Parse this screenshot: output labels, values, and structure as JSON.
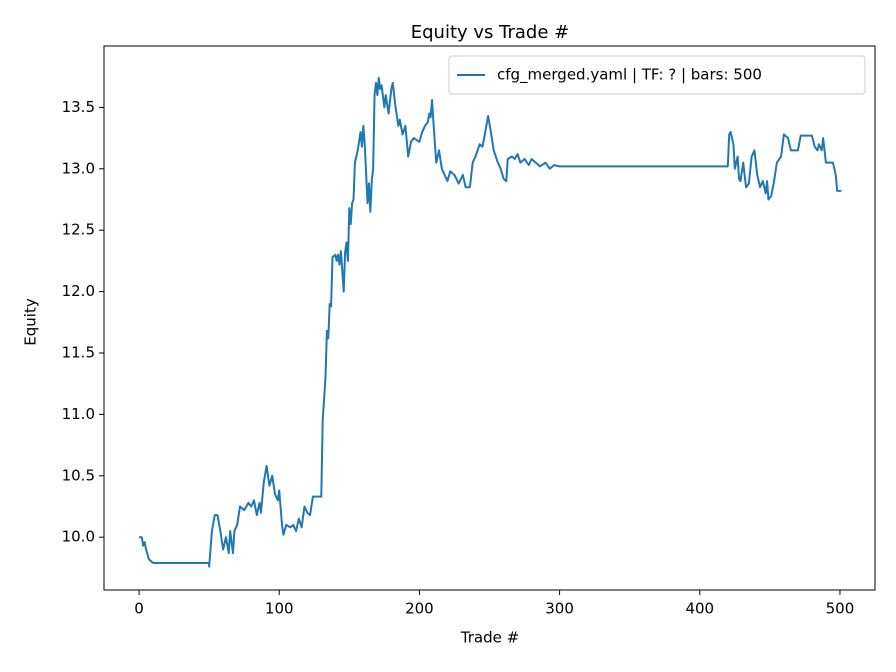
{
  "chart_data": {
    "type": "line",
    "title": "Equity vs Trade #",
    "x_label": "Trade #",
    "y_label": "Equity",
    "xlim": [
      -25,
      525
    ],
    "ylim": [
      9.57,
      14.0
    ],
    "xticks": [
      0,
      100,
      200,
      300,
      400,
      500
    ],
    "yticks": [
      {
        "value": 10,
        "label": "10.0"
      },
      10.5,
      {
        "value": 11,
        "label": "11.0"
      },
      11.5,
      {
        "value": 12,
        "label": "12.0"
      },
      12.5,
      {
        "value": 13,
        "label": "13.0"
      },
      13.5
    ],
    "legend": "upper right",
    "series": [
      {
        "name": "cfg_merged.yaml | TF: ? | bars: 500",
        "color": "#1f77b4",
        "x": [
          0,
          2,
          3,
          4,
          5,
          7,
          10,
          50,
          50,
          52,
          54,
          56,
          58,
          60,
          62,
          64,
          65,
          67,
          68,
          70,
          72,
          75,
          78,
          80,
          82,
          84,
          86,
          87,
          89,
          91,
          93,
          95,
          97,
          99,
          100,
          102,
          103,
          105,
          108,
          110,
          112,
          114,
          116,
          118,
          120,
          122,
          124,
          130,
          131,
          133,
          134,
          135,
          136,
          137,
          138,
          140,
          141,
          142,
          143,
          144,
          146,
          147,
          148,
          149,
          150,
          151,
          152,
          153,
          154,
          156,
          158,
          159,
          160,
          161,
          163,
          164,
          165,
          166,
          167,
          168,
          169,
          170,
          171,
          172,
          173,
          175,
          176,
          178,
          180,
          181,
          183,
          185,
          186,
          188,
          190,
          192,
          194,
          196,
          200,
          202,
          204,
          206,
          207,
          208,
          209,
          210,
          212,
          214,
          216,
          218,
          220,
          222,
          225,
          228,
          231,
          233,
          236,
          238,
          240,
          243,
          245,
          247,
          249,
          251,
          253,
          256,
          258,
          260,
          262,
          263,
          266,
          268,
          270,
          272,
          275,
          278,
          280,
          283,
          286,
          290,
          293,
          296,
          300,
          420,
          421,
          422,
          424,
          425,
          427,
          428,
          429,
          431,
          433,
          435,
          437,
          439,
          441,
          443,
          445,
          447,
          448,
          449,
          451,
          453,
          455,
          458,
          460,
          463,
          465,
          470,
          472,
          480,
          482,
          484,
          485,
          487,
          488,
          490,
          495,
          497,
          498,
          501
        ],
        "values": [
          10.0,
          10.0,
          9.93,
          9.96,
          9.9,
          9.82,
          9.79,
          9.79,
          9.76,
          10.05,
          10.18,
          10.18,
          10.05,
          9.9,
          10.0,
          9.87,
          10.05,
          9.87,
          10.05,
          10.1,
          10.25,
          10.22,
          10.28,
          10.25,
          10.3,
          10.18,
          10.28,
          10.2,
          10.45,
          10.58,
          10.42,
          10.5,
          10.35,
          10.3,
          10.38,
          10.1,
          10.02,
          10.1,
          10.08,
          10.1,
          10.05,
          10.15,
          10.08,
          10.25,
          10.2,
          10.18,
          10.33,
          10.33,
          10.95,
          11.3,
          11.68,
          11.62,
          11.9,
          11.88,
          12.28,
          12.3,
          12.25,
          12.3,
          12.22,
          12.33,
          12.0,
          12.32,
          12.4,
          12.25,
          12.68,
          12.55,
          12.72,
          12.75,
          13.05,
          13.15,
          13.3,
          13.18,
          13.35,
          13.2,
          12.72,
          12.88,
          12.65,
          12.9,
          13.0,
          13.6,
          13.7,
          13.6,
          13.74,
          13.65,
          13.68,
          13.5,
          13.6,
          13.45,
          13.65,
          13.7,
          13.5,
          13.35,
          13.4,
          13.28,
          13.35,
          13.1,
          13.22,
          13.25,
          13.22,
          13.3,
          13.35,
          13.38,
          13.45,
          13.42,
          13.56,
          13.38,
          13.05,
          13.15,
          13.0,
          12.95,
          12.9,
          12.98,
          12.95,
          12.88,
          12.95,
          12.85,
          12.85,
          13.05,
          13.1,
          13.2,
          13.18,
          13.3,
          13.43,
          13.3,
          13.15,
          13.05,
          13.0,
          12.92,
          12.9,
          13.08,
          13.1,
          13.08,
          13.12,
          13.05,
          13.08,
          13.03,
          13.08,
          13.05,
          13.02,
          13.05,
          13.0,
          13.03,
          13.02,
          13.02,
          13.28,
          13.3,
          13.2,
          13.0,
          13.1,
          12.92,
          12.9,
          13.05,
          12.85,
          12.88,
          13.1,
          13.15,
          12.95,
          12.85,
          12.9,
          12.8,
          12.9,
          12.75,
          12.78,
          12.9,
          13.05,
          13.1,
          13.28,
          13.25,
          13.15,
          13.15,
          13.27,
          13.27,
          13.18,
          13.15,
          13.2,
          13.15,
          13.25,
          13.05,
          13.05,
          12.95,
          12.82,
          12.82
        ]
      }
    ]
  }
}
